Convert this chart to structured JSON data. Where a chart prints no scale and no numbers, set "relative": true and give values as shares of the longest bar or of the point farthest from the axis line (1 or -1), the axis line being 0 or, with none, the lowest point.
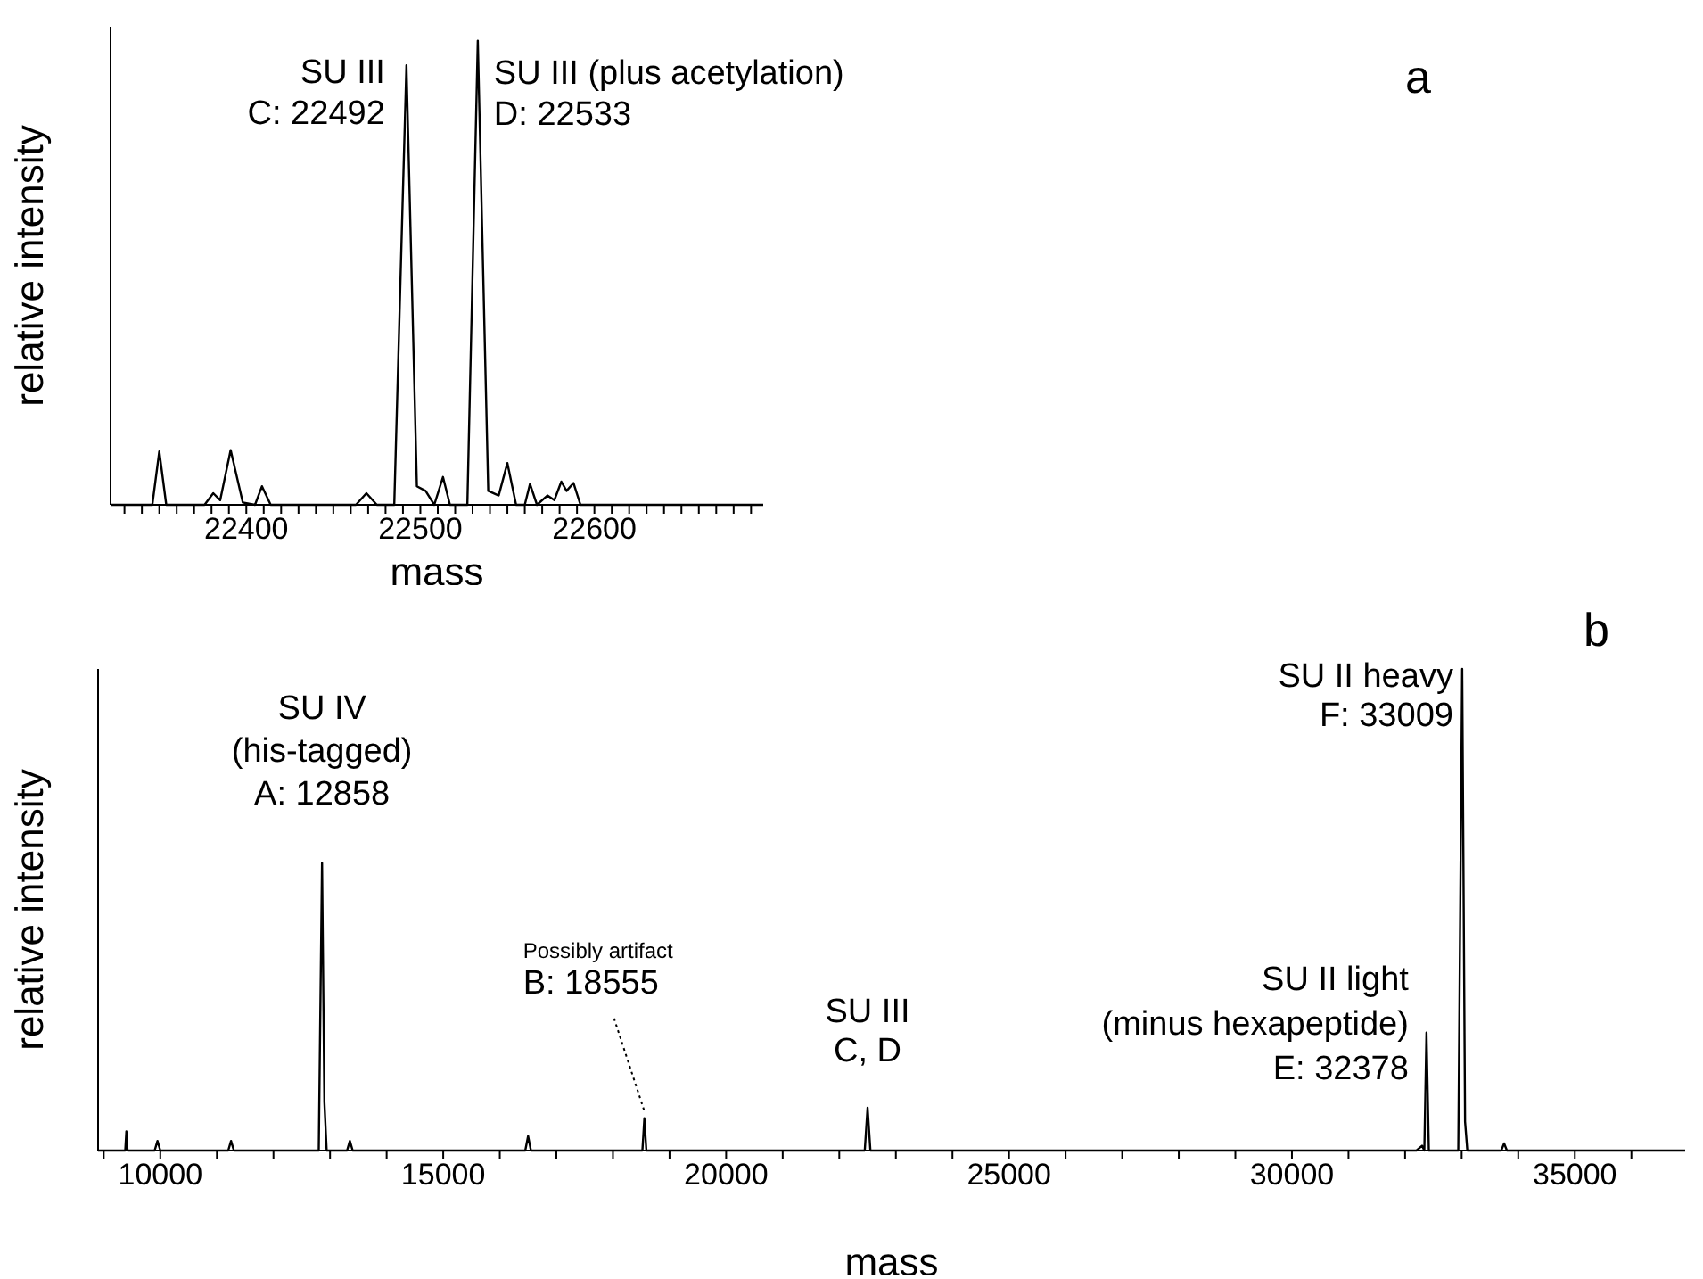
{
  "chart_data": [
    {
      "type": "line",
      "relative": true,
      "xlabel": "mass",
      "ylabel": "relative intensity",
      "color": "#000000",
      "marker": "none",
      "line_style": "solid",
      "xlim": [
        22322,
        22697
      ],
      "xticks": [
        {
          "value": 22330,
          "label": null
        },
        {
          "value": 22340,
          "label": null
        },
        {
          "value": 22350,
          "label": null
        },
        {
          "value": 22360,
          "label": null
        },
        {
          "value": 22370,
          "label": null
        },
        {
          "value": 22380,
          "label": null
        },
        {
          "value": 22390,
          "label": null
        },
        22400,
        {
          "value": 22410,
          "label": null
        },
        {
          "value": 22420,
          "label": null
        },
        {
          "value": 22430,
          "label": null
        },
        {
          "value": 22440,
          "label": null
        },
        {
          "value": 22450,
          "label": null
        },
        {
          "value": 22460,
          "label": null
        },
        {
          "value": 22470,
          "label": null
        },
        {
          "value": 22480,
          "label": null
        },
        {
          "value": 22490,
          "label": null
        },
        22500,
        {
          "value": 22510,
          "label": null
        },
        {
          "value": 22520,
          "label": null
        },
        {
          "value": 22530,
          "label": null
        },
        {
          "value": 22540,
          "label": null
        },
        {
          "value": 22550,
          "label": null
        },
        {
          "value": 22560,
          "label": null
        },
        {
          "value": 22570,
          "label": null
        },
        {
          "value": 22580,
          "label": null
        },
        {
          "value": 22590,
          "label": null
        },
        22600,
        {
          "value": 22610,
          "label": null
        },
        {
          "value": 22620,
          "label": null
        },
        {
          "value": 22630,
          "label": null
        },
        {
          "value": 22640,
          "label": null
        },
        {
          "value": 22650,
          "label": null
        },
        {
          "value": 22660,
          "label": null
        },
        {
          "value": 22670,
          "label": null
        },
        {
          "value": 22680,
          "label": null
        },
        {
          "value": 22690,
          "label": null
        }
      ],
      "x": [
        22322,
        22346,
        22350,
        22354,
        22376,
        22381,
        22385,
        22391,
        22398,
        22405,
        22409,
        22414,
        22463,
        22469,
        22475,
        22485,
        22492,
        22498,
        22503,
        22508,
        22513,
        22517,
        22527,
        22533,
        22539,
        22545,
        22550,
        22555,
        22560,
        22563,
        22567,
        22573,
        22577,
        22581,
        22584,
        22588,
        22592,
        22697
      ],
      "values": [
        0,
        0,
        0.115,
        0,
        0,
        0.025,
        0.01,
        0.118,
        0.005,
        0,
        0.04,
        0,
        0,
        0.025,
        0,
        0,
        0.947,
        0.04,
        0.03,
        0,
        0.06,
        0,
        0,
        1,
        0.03,
        0.02,
        0.09,
        0,
        0,
        0.045,
        0,
        0.02,
        0.01,
        0.05,
        0.03,
        0.047,
        0,
        0
      ],
      "annotations": [
        {
          "text": "SU III\nC: 22492",
          "x": 22492,
          "y": 0.947
        },
        {
          "text": "SU III (plus acetylation)\nD: 22533",
          "x": 22533,
          "y": 1
        },
        "a"
      ]
    },
    {
      "type": "line",
      "relative": true,
      "xlabel": "mass",
      "ylabel": "relative intensity",
      "color": "#000000",
      "marker": "none",
      "line_style": "solid",
      "xlim": [
        8900,
        36950
      ],
      "xticks": [
        {
          "value": 9000,
          "label": null
        },
        10000,
        {
          "value": 11000,
          "label": null
        },
        {
          "value": 12000,
          "label": null
        },
        {
          "value": 13000,
          "label": null
        },
        {
          "value": 14000,
          "label": null
        },
        15000,
        {
          "value": 16000,
          "label": null
        },
        {
          "value": 17000,
          "label": null
        },
        {
          "value": 18000,
          "label": null
        },
        {
          "value": 19000,
          "label": null
        },
        20000,
        {
          "value": 21000,
          "label": null
        },
        {
          "value": 22000,
          "label": null
        },
        {
          "value": 23000,
          "label": null
        },
        {
          "value": 24000,
          "label": null
        },
        25000,
        {
          "value": 26000,
          "label": null
        },
        {
          "value": 27000,
          "label": null
        },
        {
          "value": 28000,
          "label": null
        },
        {
          "value": 29000,
          "label": null
        },
        30000,
        {
          "value": 31000,
          "label": null
        },
        {
          "value": 32000,
          "label": null
        },
        {
          "value": 33000,
          "label": null
        },
        {
          "value": 34000,
          "label": null
        },
        35000,
        {
          "value": 36000,
          "label": null
        }
      ],
      "x": [
        8900,
        9380,
        9400,
        9420,
        9900,
        9950,
        10000,
        11200,
        11250,
        11300,
        12800,
        12858,
        12900,
        12940,
        13300,
        13350,
        13400,
        16450,
        16500,
        16550,
        18520,
        18555,
        18590,
        22450,
        22500,
        22550,
        32200,
        32300,
        32340,
        32378,
        32420,
        32940,
        33009,
        33060,
        33100,
        33700,
        33750,
        33800,
        36950
      ],
      "values": [
        0,
        0,
        0.04,
        0,
        0,
        0.02,
        0,
        0,
        0.02,
        0,
        0,
        0.597,
        0.1,
        0,
        0,
        0.02,
        0,
        0,
        0.03,
        0,
        0,
        0.067,
        0,
        0,
        0.089,
        0,
        0,
        0.01,
        0,
        0.245,
        0,
        0,
        1,
        0.06,
        0,
        0,
        0.015,
        0,
        0
      ],
      "annotations": [
        {
          "text": "SU IV\n(his-tagged)\nA: 12858",
          "x": 12858,
          "y": 0.597
        },
        {
          "text": "Possibly artifact\nB: 18555",
          "x": 18555,
          "y": 0.067
        },
        {
          "text": "SU III\nC, D",
          "x": 22500,
          "y": 0.089
        },
        {
          "text": "SU II light\n(minus hexapeptide)\nE: 32378",
          "x": 32378,
          "y": 0.245
        },
        {
          "text": "SU II heavy\nF: 33009",
          "x": 33009,
          "y": 1
        },
        "b"
      ]
    }
  ]
}
